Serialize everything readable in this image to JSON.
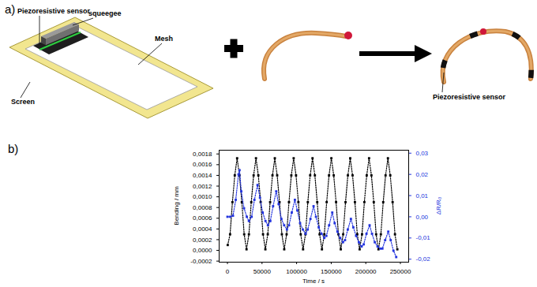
{
  "panel_a": {
    "label": "a)",
    "texts": {
      "sensor": "Piezoresistive sensor",
      "squeegee": "squeegee",
      "mesh": "Mesh",
      "screen": "Screen",
      "catheter_sensor": "Piezoresistive sensor"
    }
  },
  "chart_data": {
    "type": "line",
    "panel_label": "b)",
    "x_label": "Time / s",
    "y_label": "Bending / mm",
    "y2_label": "ΔR/R₀",
    "xlim": [
      -12000,
      262000
    ],
    "xticks": [
      0,
      50000,
      100000,
      150000,
      200000,
      250000
    ],
    "ylim": [
      -0.00022,
      0.00187
    ],
    "yticks": [
      {
        "value": -0.0002,
        "label": "-0,0002"
      },
      {
        "value": 0,
        "label": "0,0000"
      },
      {
        "value": 0.0002,
        "label": "0,0002"
      },
      {
        "value": 0.0004,
        "label": "0,0004"
      },
      {
        "value": 0.0006,
        "label": "0,0006"
      },
      {
        "value": 0.0008,
        "label": "0,0008"
      },
      {
        "value": 0.001,
        "label": "0,0010"
      },
      {
        "value": 0.0012,
        "label": "0,0012"
      },
      {
        "value": 0.0014,
        "label": "0,0014"
      },
      {
        "value": 0.0016,
        "label": "0,0016"
      },
      {
        "value": 0.0018,
        "label": "0,0018"
      }
    ],
    "y2lim": [
      -0.0214,
      0.0314
    ],
    "y2ticks": [
      {
        "value": -0.02,
        "label": "-0,02"
      },
      {
        "value": -0.01,
        "label": "-0,01"
      },
      {
        "value": 0,
        "label": "0,00"
      },
      {
        "value": 0.01,
        "label": "0,01"
      },
      {
        "value": 0.02,
        "label": "0,02"
      },
      {
        "value": 0.03,
        "label": "0,03"
      }
    ],
    "grid": false,
    "series": [
      {
        "color": "#000000",
        "marker": "square",
        "line_style": "dotted",
        "x": [
          400,
          3800,
          7200,
          10600,
          14000,
          17400,
          20800,
          24200,
          27600,
          31050,
          34450,
          37850,
          41250,
          44650,
          48050,
          51450,
          54850,
          58300,
          61700,
          65100,
          68500,
          71900,
          75300,
          78700,
          82100,
          85550,
          88950,
          92350,
          95750,
          99150,
          102550,
          105950,
          109350,
          112800,
          116200,
          119600,
          123000,
          126400,
          129800,
          133200,
          136600,
          140050,
          143450,
          146850,
          150250,
          153650,
          157050,
          160450,
          163850,
          167300,
          170700,
          174100,
          177500,
          180900,
          184300,
          187700,
          191100,
          194550,
          197950,
          201350,
          204750,
          208150,
          211550,
          214950,
          218350,
          221800,
          225200,
          228600,
          232000,
          235400,
          238800,
          242200,
          245600
        ],
        "values": [
          0.0001,
          0.0003,
          0.0009,
          0.0014,
          0.00172,
          0.0014,
          0.0009,
          0.0003,
          2e-05,
          0.0003,
          0.0009,
          0.0014,
          0.00172,
          0.0014,
          0.0009,
          0.0003,
          2e-05,
          0.0003,
          0.0009,
          0.0014,
          0.00172,
          0.0014,
          0.0009,
          0.0003,
          2e-05,
          0.0003,
          0.0009,
          0.0014,
          0.00172,
          0.0014,
          0.0009,
          0.0003,
          2e-05,
          0.0003,
          0.0009,
          0.0014,
          0.00172,
          0.0014,
          0.0009,
          0.0003,
          2e-05,
          0.0003,
          0.0009,
          0.0014,
          0.00172,
          0.0014,
          0.0009,
          0.0003,
          2e-05,
          0.0003,
          0.0009,
          0.0014,
          0.00172,
          0.0014,
          0.0009,
          0.0003,
          2e-05,
          0.0003,
          0.0009,
          0.0014,
          0.00172,
          0.0014,
          0.0009,
          0.0003,
          2e-05,
          0.0003,
          0.0009,
          0.0014,
          0.00172,
          0.0014,
          0.0009,
          0.0003,
          2e-05
        ]
      },
      {
        "color": "#2233dd",
        "marker": "square",
        "line_style": "dotted",
        "axis": "y2",
        "x": [
          0,
          4000,
          8000,
          12000,
          16000,
          17500,
          20000,
          24000,
          28000,
          31000,
          35000,
          39000,
          43500,
          47000,
          51000,
          55000,
          58500,
          62000,
          66000,
          70500,
          74000,
          78000,
          82000,
          86000,
          89000,
          93000,
          97500,
          101000,
          105000,
          109000,
          113000,
          116000,
          120000,
          124500,
          128000,
          132000,
          136000,
          140000,
          143000,
          147000,
          151500,
          155000,
          159000,
          163000,
          167000,
          170000,
          174000,
          178500,
          182000,
          186000,
          190000,
          194000,
          197000,
          201000,
          205500,
          209000,
          213000,
          217000,
          221000,
          224000,
          228000,
          232500,
          236000,
          240000,
          244000
        ],
        "values": [
          0,
          0,
          0.0005,
          0.008,
          0.02,
          0.022,
          0.012,
          0.004,
          0,
          -0.002,
          0,
          0.008,
          0.015,
          0.009,
          0.002,
          -0.002,
          -0.004,
          -0.002,
          0.005,
          0.012,
          0.006,
          -0.001,
          -0.004,
          -0.006,
          -0.004,
          0.002,
          0.008,
          0.003,
          -0.003,
          -0.006,
          -0.008,
          -0.006,
          -0.001,
          0.005,
          0,
          -0.005,
          -0.008,
          -0.01,
          -0.009,
          -0.004,
          0.002,
          -0.003,
          -0.007,
          -0.01,
          -0.012,
          -0.011,
          -0.006,
          -0.001,
          -0.005,
          -0.009,
          -0.012,
          -0.014,
          -0.013,
          -0.008,
          -0.004,
          -0.008,
          -0.012,
          -0.014,
          -0.015,
          -0.015,
          -0.011,
          -0.007,
          -0.011,
          -0.016,
          -0.019
        ]
      }
    ]
  }
}
